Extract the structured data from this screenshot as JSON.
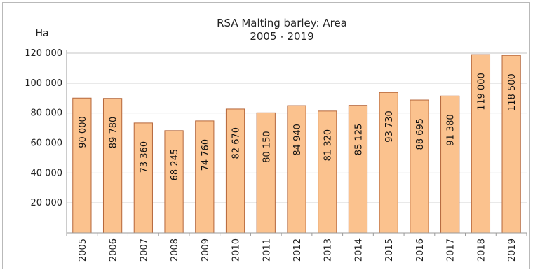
{
  "chart_data": {
    "type": "bar",
    "title": "RSA  Malting barley: Area",
    "subtitle": "2005 - 2019",
    "ylabel": "Ha",
    "ylim": [
      0,
      120000
    ],
    "yticks": [
      20000,
      40000,
      60000,
      80000,
      100000,
      120000
    ],
    "ytick_labels": [
      "20 000",
      "40 000",
      "60 000",
      "80 000",
      "100 000",
      "120 000"
    ],
    "grid": true,
    "legend": "none",
    "bar_color": "#fbc28e",
    "bar_edge_color": "#b5663a",
    "categories": [
      "2005",
      "2006",
      "2007",
      "2008",
      "2009",
      "2010",
      "2011",
      "2012",
      "2013",
      "2014",
      "2015",
      "2016",
      "2017",
      "2018",
      "2019"
    ],
    "values": [
      90000,
      89780,
      73360,
      68245,
      74760,
      82670,
      80150,
      84940,
      81320,
      85125,
      93730,
      88695,
      91380,
      119000,
      118500
    ],
    "value_labels": [
      "90 000",
      "89 780",
      "73 360",
      "68 245",
      "74 760",
      "82 670",
      "80 150",
      "84 940",
      "81 320",
      "85 125",
      "93 730",
      "88 695",
      "91 380",
      "119 000",
      "118 500"
    ]
  }
}
